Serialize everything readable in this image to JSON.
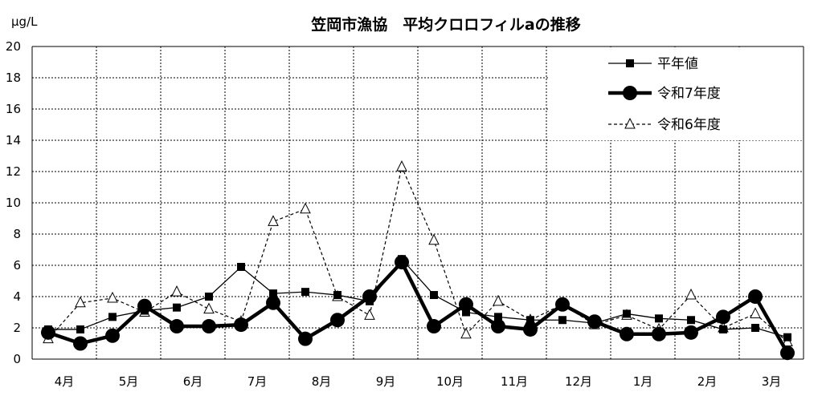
{
  "chart_data": {
    "type": "line",
    "title": "笠岡市漁協　平均クロロフィルaの推移",
    "ylabel": "μg/L",
    "xlabel": "",
    "ylim": [
      0,
      20
    ],
    "yticks": [
      "0",
      "2",
      "4",
      "6",
      "8",
      "10",
      "12",
      "14",
      "16",
      "18",
      "20"
    ],
    "month_labels": [
      "4月",
      "5月",
      "6月",
      "7月",
      "8月",
      "9月",
      "10月",
      "11月",
      "12月",
      "1月",
      "2月",
      "3月"
    ],
    "grid": true,
    "legend_position": "top-right",
    "series": [
      {
        "name": "平年値",
        "style": "thin-solid-square",
        "values": [
          1.9,
          1.9,
          2.7,
          3.1,
          3.3,
          4.0,
          5.9,
          4.2,
          4.3,
          4.1,
          3.7,
          6.4,
          4.1,
          3.0,
          2.7,
          2.5,
          2.5,
          2.3,
          2.9,
          2.6,
          2.5,
          1.9,
          2.0,
          1.4
        ]
      },
      {
        "name": "令和7年度",
        "style": "thick-solid-circle",
        "values": [
          1.7,
          1.0,
          1.5,
          3.4,
          2.1,
          2.1,
          2.2,
          3.6,
          1.3,
          2.5,
          4.0,
          6.2,
          2.1,
          3.5,
          2.1,
          1.9,
          3.5,
          2.4,
          1.6,
          1.6,
          1.7,
          2.7,
          4.0,
          0.4
        ]
      },
      {
        "name": "令和6年度",
        "style": "dashed-open-triangle",
        "values": [
          1.3,
          3.6,
          3.9,
          3.0,
          4.3,
          3.2,
          2.4,
          8.8,
          9.6,
          4.0,
          2.8,
          12.3,
          7.6,
          1.6,
          3.7,
          2.5,
          3.5,
          2.2,
          2.8,
          1.9,
          4.1,
          2.0,
          2.9,
          1.1
        ]
      }
    ]
  }
}
